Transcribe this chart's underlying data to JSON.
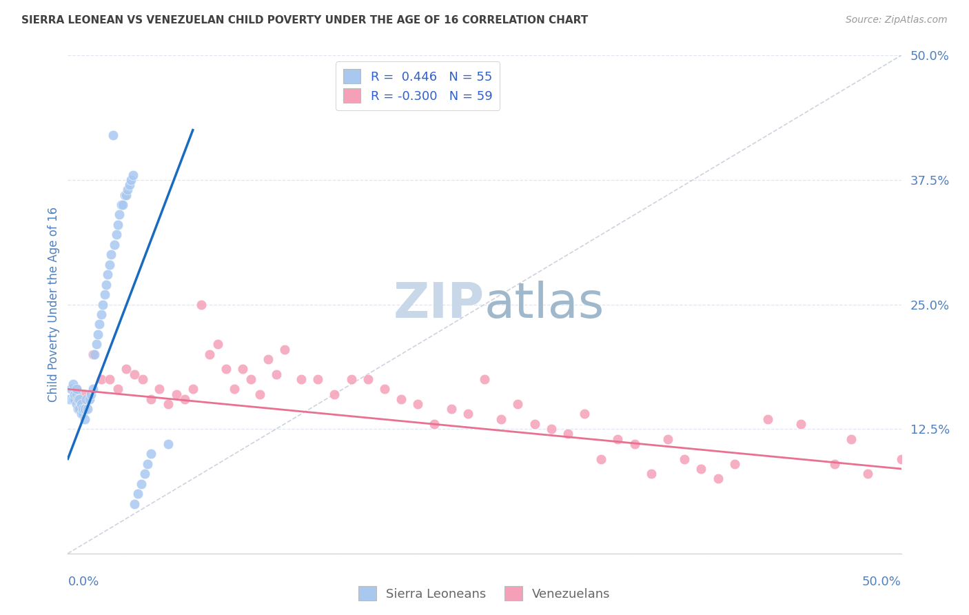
{
  "title": "SIERRA LEONEAN VS VENEZUELAN CHILD POVERTY UNDER THE AGE OF 16 CORRELATION CHART",
  "source": "Source: ZipAtlas.com",
  "ylabel": "Child Poverty Under the Age of 16",
  "xlim": [
    0.0,
    0.5
  ],
  "ylim": [
    0.0,
    0.5
  ],
  "yticks": [
    0.0,
    0.125,
    0.25,
    0.375,
    0.5
  ],
  "ytick_labels": [
    "",
    "12.5%",
    "25.0%",
    "37.5%",
    "50.0%"
  ],
  "sierra_R": 0.446,
  "sierra_N": 55,
  "venezuela_R": -0.3,
  "venezuela_N": 59,
  "sierra_color": "#a8c8f0",
  "venezuela_color": "#f5a0b8",
  "sierra_line_color": "#1a6bbf",
  "venezuela_line_color": "#e87090",
  "dashed_line_color": "#c0c8d8",
  "watermark_zip_color": "#c8d8e8",
  "watermark_atlas_color": "#a0b8cc",
  "legend_sierra_label": "Sierra Leoneans",
  "legend_venezuela_label": "Venezuelans",
  "background_color": "#ffffff",
  "grid_color": "#dde3ee",
  "title_color": "#404040",
  "axis_label_color": "#5080c0",
  "legend_R_color": "#3060cc",
  "sl_x": [
    0.001,
    0.002,
    0.003,
    0.003,
    0.004,
    0.004,
    0.005,
    0.005,
    0.005,
    0.006,
    0.006,
    0.007,
    0.007,
    0.008,
    0.008,
    0.009,
    0.009,
    0.01,
    0.01,
    0.011,
    0.012,
    0.013,
    0.014,
    0.015,
    0.016,
    0.017,
    0.018,
    0.019,
    0.02,
    0.021,
    0.022,
    0.023,
    0.024,
    0.025,
    0.026,
    0.027,
    0.028,
    0.029,
    0.03,
    0.031,
    0.032,
    0.033,
    0.034,
    0.035,
    0.036,
    0.037,
    0.038,
    0.039,
    0.04,
    0.042,
    0.044,
    0.046,
    0.048,
    0.05,
    0.06
  ],
  "sl_y": [
    0.155,
    0.165,
    0.155,
    0.17,
    0.155,
    0.16,
    0.15,
    0.16,
    0.165,
    0.145,
    0.155,
    0.145,
    0.155,
    0.14,
    0.15,
    0.14,
    0.145,
    0.135,
    0.145,
    0.155,
    0.145,
    0.155,
    0.16,
    0.165,
    0.2,
    0.21,
    0.22,
    0.23,
    0.24,
    0.25,
    0.26,
    0.27,
    0.28,
    0.29,
    0.3,
    0.42,
    0.31,
    0.32,
    0.33,
    0.34,
    0.35,
    0.35,
    0.36,
    0.36,
    0.365,
    0.37,
    0.375,
    0.38,
    0.05,
    0.06,
    0.07,
    0.08,
    0.09,
    0.1,
    0.11
  ],
  "vz_x": [
    0.005,
    0.01,
    0.015,
    0.02,
    0.025,
    0.03,
    0.035,
    0.04,
    0.045,
    0.05,
    0.055,
    0.06,
    0.065,
    0.07,
    0.075,
    0.08,
    0.085,
    0.09,
    0.095,
    0.1,
    0.105,
    0.11,
    0.115,
    0.12,
    0.125,
    0.13,
    0.14,
    0.15,
    0.16,
    0.17,
    0.18,
    0.19,
    0.2,
    0.21,
    0.22,
    0.23,
    0.24,
    0.25,
    0.26,
    0.27,
    0.28,
    0.29,
    0.3,
    0.31,
    0.32,
    0.33,
    0.34,
    0.35,
    0.36,
    0.37,
    0.38,
    0.39,
    0.4,
    0.42,
    0.44,
    0.46,
    0.47,
    0.48,
    0.5
  ],
  "vz_y": [
    0.165,
    0.16,
    0.2,
    0.175,
    0.175,
    0.165,
    0.185,
    0.18,
    0.175,
    0.155,
    0.165,
    0.15,
    0.16,
    0.155,
    0.165,
    0.25,
    0.2,
    0.21,
    0.185,
    0.165,
    0.185,
    0.175,
    0.16,
    0.195,
    0.18,
    0.205,
    0.175,
    0.175,
    0.16,
    0.175,
    0.175,
    0.165,
    0.155,
    0.15,
    0.13,
    0.145,
    0.14,
    0.175,
    0.135,
    0.15,
    0.13,
    0.125,
    0.12,
    0.14,
    0.095,
    0.115,
    0.11,
    0.08,
    0.115,
    0.095,
    0.085,
    0.075,
    0.09,
    0.135,
    0.13,
    0.09,
    0.115,
    0.08,
    0.095
  ],
  "sl_line_x": [
    0.0,
    0.075
  ],
  "sl_line_y": [
    0.095,
    0.425
  ],
  "vz_line_x": [
    0.0,
    0.5
  ],
  "vz_line_y": [
    0.165,
    0.085
  ],
  "dash_line_x": [
    0.0,
    0.5
  ],
  "dash_line_y": [
    0.0,
    0.5
  ]
}
